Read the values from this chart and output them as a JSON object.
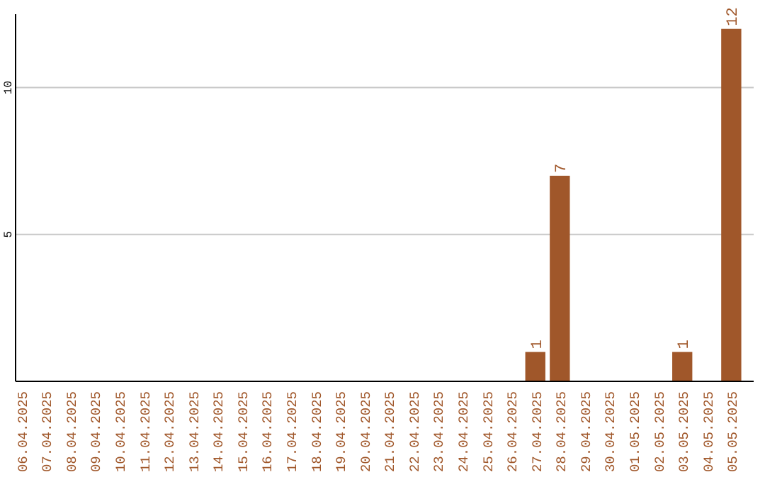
{
  "chart_data": {
    "type": "bar",
    "categories": [
      "06.04.2025",
      "07.04.2025",
      "08.04.2025",
      "09.04.2025",
      "10.04.2025",
      "11.04.2025",
      "12.04.2025",
      "13.04.2025",
      "14.04.2025",
      "15.04.2025",
      "16.04.2025",
      "17.04.2025",
      "18.04.2025",
      "19.04.2025",
      "20.04.2025",
      "21.04.2025",
      "22.04.2025",
      "23.04.2025",
      "24.04.2025",
      "25.04.2025",
      "26.04.2025",
      "27.04.2025",
      "28.04.2025",
      "29.04.2025",
      "30.04.2025",
      "01.05.2025",
      "02.05.2025",
      "03.05.2025",
      "04.05.2025",
      "05.05.2025"
    ],
    "values": [
      0,
      0,
      0,
      0,
      0,
      0,
      0,
      0,
      0,
      0,
      0,
      0,
      0,
      0,
      0,
      0,
      0,
      0,
      0,
      0,
      0,
      1,
      7,
      0,
      0,
      0,
      0,
      1,
      0,
      12
    ],
    "value_labels": [
      null,
      null,
      null,
      null,
      null,
      null,
      null,
      null,
      null,
      null,
      null,
      null,
      null,
      null,
      null,
      null,
      null,
      null,
      null,
      null,
      null,
      "1",
      "7",
      null,
      null,
      null,
      null,
      "1",
      null,
      "12"
    ],
    "color": "#a0572a",
    "ylim": [
      0,
      12.5
    ],
    "yticks": [
      5,
      10
    ],
    "grid": "y"
  }
}
